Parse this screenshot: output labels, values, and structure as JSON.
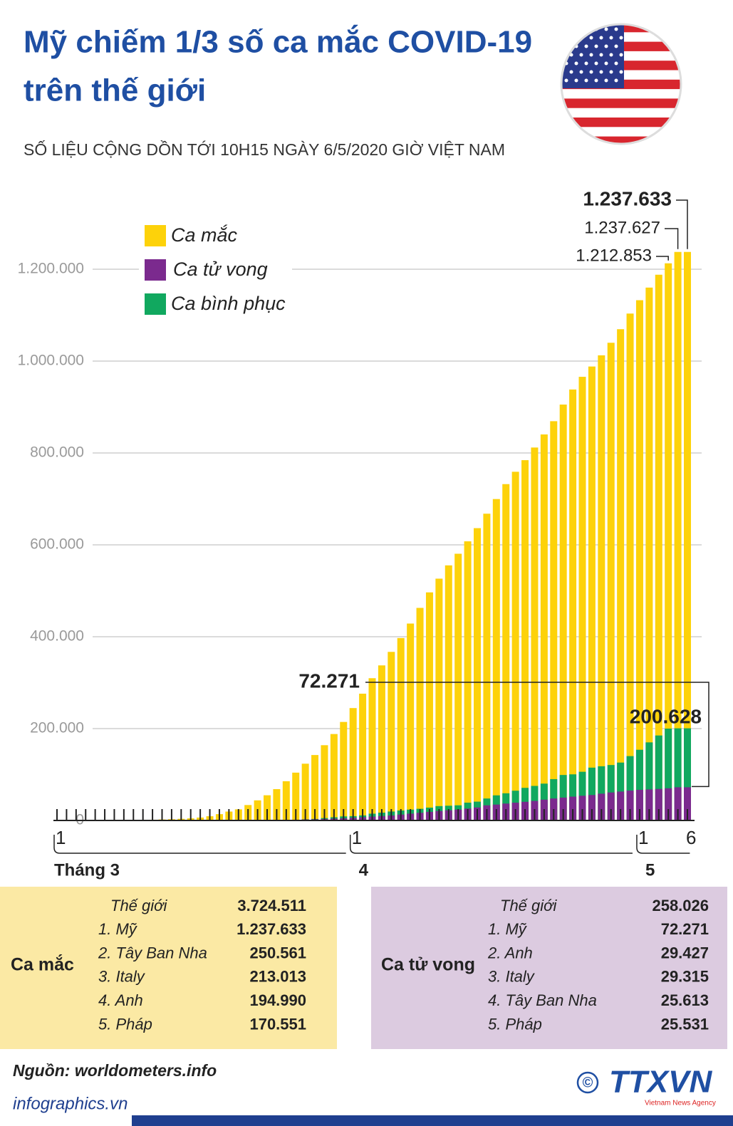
{
  "header": {
    "title_line1": "Mỹ chiếm 1/3 số ca mắc COVID-19",
    "title_line2": "trên thế giới",
    "subtitle": "SỐ LIỆU CỘNG DỒN TỚI 10H15 NGÀY 6/5/2020 GIỜ VIỆT NAM"
  },
  "chart_data": {
    "type": "bar",
    "grid": true,
    "legend": "top-left",
    "ylim": [
      0,
      1300000
    ],
    "yticks": [
      0,
      {
        "value": 200000,
        "label": "200.000"
      },
      {
        "value": 400000,
        "label": "400.000"
      },
      {
        "value": 600000,
        "label": "600.000"
      },
      {
        "value": 800000,
        "label": "800.000"
      },
      {
        "value": 1000000,
        "label": "1.000.000"
      },
      {
        "value": 1200000,
        "label": "1.200.000"
      }
    ],
    "categories": [
      "1",
      null,
      null,
      null,
      null,
      null,
      null,
      null,
      null,
      null,
      null,
      null,
      null,
      null,
      null,
      null,
      null,
      null,
      null,
      null,
      null,
      null,
      null,
      null,
      null,
      null,
      null,
      null,
      null,
      null,
      null,
      "1",
      null,
      null,
      null,
      null,
      null,
      null,
      null,
      null,
      null,
      null,
      null,
      null,
      null,
      null,
      null,
      null,
      null,
      null,
      null,
      null,
      null,
      null,
      null,
      null,
      null,
      null,
      null,
      null,
      null,
      "1",
      null,
      null,
      null,
      null,
      "6"
    ],
    "x_groups": [
      "Tháng 3",
      "4",
      "5"
    ],
    "series": [
      {
        "name": "Ca mắc",
        "color": "#fdd20a",
        "values": [
          100,
          124,
          158,
          221,
          319,
          435,
          541,
          704,
          994,
          1301,
          1630,
          2183,
          2770,
          3613,
          4596,
          6344,
          9197,
          13779,
          19367,
          24192,
          33592,
          43781,
          54856,
          68211,
          85435,
          104126,
          123578,
          142460,
          163844,
          188172,
          214461,
          244678,
          276007,
          309699,
          337573,
          367004,
          397121,
          428654,
          462780,
          496535,
          526396,
          555313,
          580619,
          607670,
          636350,
          667801,
          699706,
          732197,
          759086,
          784326,
          811865,
          840351,
          869170,
          905358,
          938154,
          965785,
          988197,
          1012582,
          1039909,
          1069424,
          1103461,
          1132539,
          1160000,
          1188000,
          1212853,
          1237627,
          1237633
        ],
        "value_labels": [
          null,
          null,
          null,
          null,
          null,
          null,
          null,
          null,
          null,
          null,
          null,
          null,
          null,
          null,
          null,
          null,
          null,
          null,
          null,
          null,
          null,
          null,
          null,
          null,
          null,
          null,
          null,
          null,
          null,
          null,
          null,
          null,
          null,
          null,
          null,
          null,
          null,
          null,
          null,
          null,
          null,
          null,
          null,
          null,
          null,
          null,
          null,
          null,
          null,
          null,
          null,
          null,
          null,
          null,
          null,
          null,
          null,
          null,
          null,
          null,
          null,
          null,
          null,
          null,
          "1.212.853",
          "1.237.627",
          "1.237.633"
        ]
      },
      {
        "name": "Ca tử vong",
        "color": "#7b2a8e",
        "values": [
          1,
          6,
          9,
          11,
          12,
          15,
          19,
          22,
          26,
          30,
          38,
          41,
          48,
          58,
          73,
          107,
          150,
          207,
          268,
          360,
          471,
          600,
          800,
          1050,
          1400,
          1700,
          2200,
          2600,
          3100,
          3900,
          4700,
          5900,
          7000,
          8400,
          9600,
          10900,
          12800,
          14800,
          16700,
          18700,
          20600,
          22100,
          23600,
          25800,
          28300,
          32900,
          34600,
          36800,
          38700,
          40600,
          42500,
          45300,
          47800,
          49800,
          51900,
          53800,
          55400,
          58300,
          60900,
          62900,
          65000,
          66700,
          67600,
          68600,
          70000,
          72265,
          72271
        ],
        "value_labels": [
          null,
          null,
          null,
          null,
          null,
          null,
          null,
          null,
          null,
          null,
          null,
          null,
          null,
          null,
          null,
          null,
          null,
          null,
          null,
          null,
          null,
          null,
          null,
          null,
          null,
          null,
          null,
          null,
          null,
          null,
          null,
          null,
          null,
          null,
          null,
          null,
          null,
          null,
          null,
          null,
          null,
          null,
          null,
          null,
          null,
          null,
          null,
          null,
          null,
          null,
          null,
          null,
          null,
          null,
          null,
          null,
          null,
          null,
          null,
          null,
          null,
          null,
          null,
          null,
          null,
          null,
          "72.271"
        ]
      },
      {
        "name": "Ca bình phục",
        "color": "#11a85f",
        "values": [
          7,
          7,
          7,
          8,
          8,
          8,
          10,
          12,
          15,
          15,
          15,
          15,
          15,
          15,
          17,
          49,
          106,
          108,
          125,
          147,
          178,
          178,
          178,
          178,
          361,
          1000,
          2500,
          3300,
          5200,
          7000,
          8900,
          9400,
          11000,
          14800,
          17000,
          19500,
          21700,
          23600,
          25400,
          28000,
          31300,
          32100,
          33000,
          38800,
          41000,
          47800,
          54700,
          59200,
          64800,
          71000,
          75200,
          80200,
          90000,
          99000,
          100400,
          106000,
          115000,
          118000,
          120700,
          126000,
          140100,
          153900,
          170000,
          185000,
          200000,
          200600,
          200628
        ],
        "value_labels": [
          null,
          null,
          null,
          null,
          null,
          null,
          null,
          null,
          null,
          null,
          null,
          null,
          null,
          null,
          null,
          null,
          null,
          null,
          null,
          null,
          null,
          null,
          null,
          null,
          null,
          null,
          null,
          null,
          null,
          null,
          null,
          null,
          null,
          null,
          null,
          null,
          null,
          null,
          null,
          null,
          null,
          null,
          null,
          null,
          null,
          null,
          null,
          null,
          null,
          null,
          null,
          null,
          null,
          null,
          null,
          null,
          null,
          null,
          null,
          null,
          null,
          null,
          null,
          null,
          null,
          null,
          "200.628"
        ]
      }
    ]
  },
  "tables": [
    {
      "title": "Ca mắc",
      "rows": [
        [
          "Thế giới",
          "3.724.511"
        ],
        [
          "1. Mỹ",
          "1.237.633"
        ],
        [
          "2. Tây Ban Nha",
          "250.561"
        ],
        [
          "3. Italy",
          "213.013"
        ],
        [
          "4. Anh",
          "194.990"
        ],
        [
          "5. Pháp",
          "170.551"
        ]
      ]
    },
    {
      "title": "Ca tử vong",
      "rows": [
        [
          "Thế giới",
          "258.026"
        ],
        [
          "1. Mỹ",
          "72.271"
        ],
        [
          "2. Anh",
          "29.427"
        ],
        [
          "3. Italy",
          "29.315"
        ],
        [
          "4. Tây Ban Nha",
          "25.613"
        ],
        [
          "5. Pháp",
          "25.531"
        ]
      ]
    }
  ],
  "footer": {
    "source": "Nguồn: worldometers.info",
    "site": "infographics.vn",
    "copyright": "©",
    "logo": "TTXVN",
    "agency": "Vietnam News Agency"
  }
}
